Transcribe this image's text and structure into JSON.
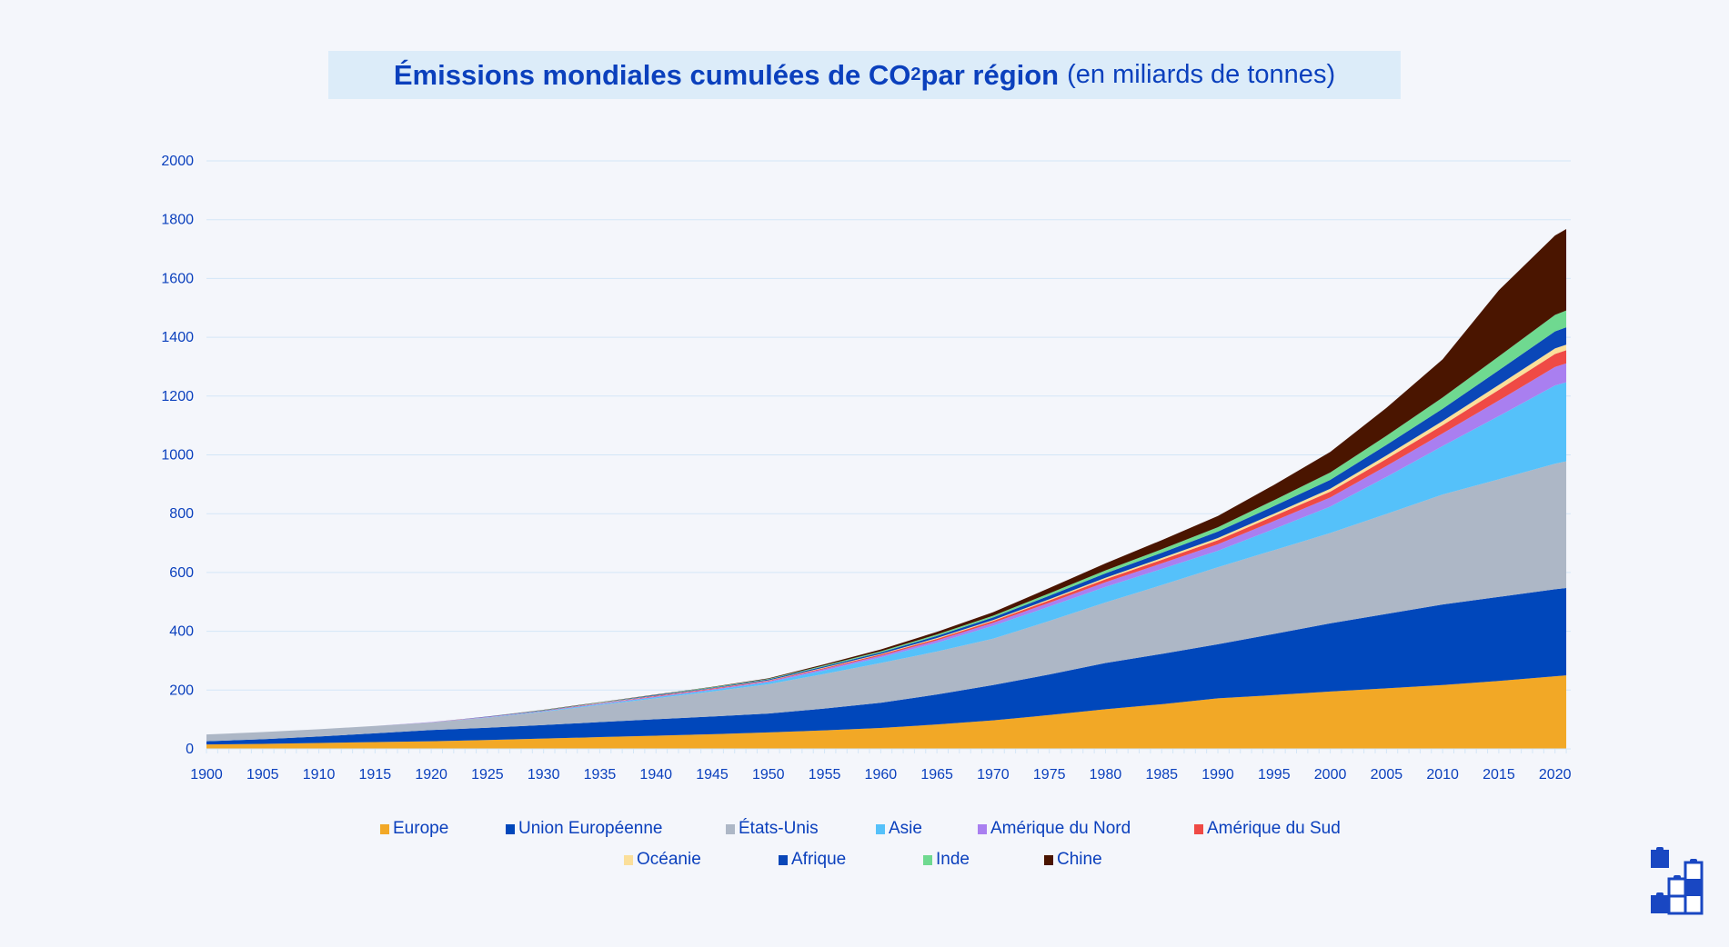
{
  "title": {
    "bold_main": "Émissions mondiales cumulées de CO",
    "subscript": "2",
    "bold_tail": " par région",
    "unit": "(en miliards de tonnes)"
  },
  "chart_data": {
    "type": "area",
    "stacked": true,
    "title": "Émissions mondiales cumulées de CO2 par région (en miliards de tonnes)",
    "xlabel": "",
    "ylabel": "",
    "ylim": [
      0,
      2000
    ],
    "yticks": [
      "0",
      "200",
      "400",
      "600",
      "800",
      "1000",
      "1200",
      "1400",
      "1600",
      "1800",
      "2000"
    ],
    "xticks": [
      "1900",
      "1905",
      "1910",
      "1915",
      "1920",
      "1925",
      "1930",
      "1935",
      "1940",
      "1945",
      "1950",
      "1955",
      "1960",
      "1965",
      "1970",
      "1975",
      "1980",
      "1985",
      "1990",
      "1995",
      "2000",
      "2005",
      "2010",
      "2015",
      "2020"
    ],
    "grid": true,
    "legend_position": "bottom",
    "x": [
      1900,
      1905,
      1910,
      1915,
      1920,
      1925,
      1930,
      1935,
      1940,
      1945,
      1950,
      1955,
      1960,
      1965,
      1970,
      1975,
      1980,
      1985,
      1990,
      1995,
      2000,
      2005,
      2010,
      2015,
      2020,
      2021
    ],
    "series": [
      {
        "name": "Europe",
        "color": "#f2a826",
        "values": [
          15,
          17,
          20,
          23,
          26,
          30,
          35,
          40,
          45,
          50,
          56,
          63,
          71,
          83,
          97,
          115,
          135,
          152,
          172,
          183,
          195,
          206,
          217,
          231,
          247,
          250
        ]
      },
      {
        "name": "Union Européenne",
        "color": "#0047bb",
        "values": [
          11,
          16,
          22,
          30,
          38,
          42,
          46,
          51,
          56,
          60,
          64,
          74,
          86,
          102,
          120,
          138,
          157,
          171,
          184,
          208,
          232,
          253,
          274,
          286,
          296,
          297
        ]
      },
      {
        "name": "États-Unis",
        "color": "#adb7c6",
        "values": [
          23,
          24,
          25,
          25,
          26,
          34,
          45,
          58,
          71,
          85,
          100,
          118,
          135,
          146,
          158,
          182,
          206,
          234,
          262,
          285,
          307,
          340,
          374,
          400,
          427,
          431
        ]
      },
      {
        "name": "Asie",
        "color": "#55c1fa",
        "values": [
          0,
          0,
          0,
          0,
          0,
          1,
          2,
          3,
          4,
          5,
          7,
          12,
          19,
          30,
          44,
          49,
          53,
          55,
          56,
          72,
          90,
          126,
          165,
          215,
          266,
          269
        ]
      },
      {
        "name": "Amérique du Nord",
        "color": "#a97ff0",
        "values": [
          0,
          0,
          0,
          0,
          1,
          1,
          1,
          2,
          2,
          3,
          3,
          5,
          6,
          8,
          10,
          13,
          16,
          19,
          22,
          27,
          31,
          37,
          43,
          53,
          63,
          64
        ]
      },
      {
        "name": "Amérique du Sud",
        "color": "#ef4a45",
        "values": [
          0,
          0,
          0,
          0,
          0,
          1,
          1,
          1,
          2,
          2,
          2,
          3,
          4,
          5,
          6,
          8,
          10,
          12,
          14,
          17,
          20,
          24,
          28,
          36,
          44,
          45
        ]
      },
      {
        "name": "Océanie",
        "color": "#fbdf9a",
        "values": [
          0,
          0,
          0,
          0,
          0,
          0,
          0,
          1,
          1,
          1,
          1,
          2,
          2,
          3,
          3,
          4,
          5,
          6,
          7,
          8,
          10,
          12,
          14,
          17,
          19,
          19
        ]
      },
      {
        "name": "Afrique",
        "color": "#0a47b8",
        "values": [
          0,
          0,
          0,
          0,
          0,
          1,
          1,
          1,
          2,
          2,
          3,
          4,
          5,
          7,
          9,
          12,
          15,
          18,
          22,
          26,
          30,
          36,
          42,
          50,
          58,
          59
        ]
      },
      {
        "name": "Inde",
        "color": "#6fd990",
        "values": [
          0,
          0,
          0,
          0,
          0,
          0,
          1,
          1,
          1,
          2,
          2,
          3,
          4,
          5,
          6,
          8,
          10,
          12,
          15,
          20,
          25,
          31,
          38,
          47,
          56,
          57
        ]
      },
      {
        "name": "Chine",
        "color": "#4a1500",
        "values": [
          0,
          0,
          0,
          0,
          0,
          0,
          1,
          1,
          1,
          1,
          2,
          4,
          6,
          9,
          12,
          18,
          24,
          31,
          38,
          52,
          70,
          95,
          130,
          225,
          270,
          277
        ]
      }
    ]
  },
  "logo": {
    "icon": "stacked-blocks-logo-icon",
    "color": "#1947c2"
  }
}
